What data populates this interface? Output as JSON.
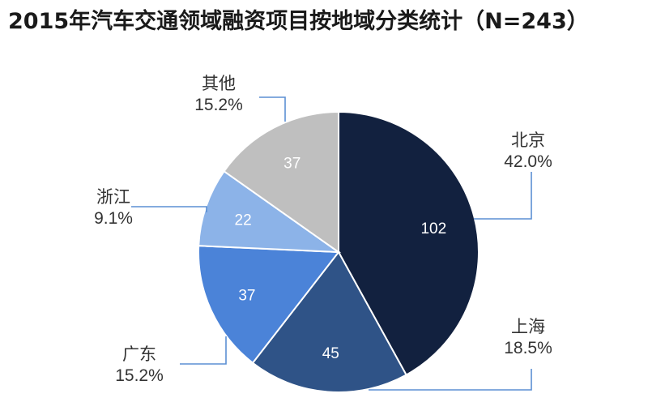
{
  "chart_data": {
    "type": "pie",
    "title": "2015年汽车交通领域融资项目按地域分类统计（N=243）",
    "total": 243,
    "slices": [
      {
        "name": "北京",
        "value": 102,
        "percent": "42.0%",
        "color": "#12213f"
      },
      {
        "name": "上海",
        "value": 45,
        "percent": "18.5%",
        "color": "#2f5387"
      },
      {
        "name": "广东",
        "value": 37,
        "percent": "15.2%",
        "color": "#4b83d8"
      },
      {
        "name": "浙江",
        "value": 22,
        "percent": "9.1%",
        "color": "#8cb3e8"
      },
      {
        "name": "其他",
        "value": 37,
        "percent": "15.2%",
        "color": "#bfbfbf"
      }
    ],
    "leader_color": "#5b8fd3",
    "start_angle": "12 o'clock",
    "direction": "clockwise"
  }
}
